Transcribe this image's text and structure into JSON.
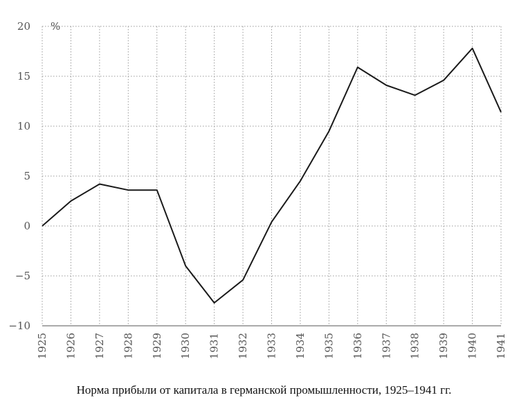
{
  "chart_data": {
    "type": "line",
    "caption": "Норма прибыли от капитала в германской промышленности, 1925–1941 гг.",
    "unit_label": "%",
    "x": [
      "1925",
      "1926",
      "1927",
      "1928",
      "1929",
      "1930",
      "1931",
      "1932",
      "1933",
      "1934",
      "1935",
      "1936",
      "1937",
      "1938",
      "1939",
      "1940",
      "1941"
    ],
    "y_ticks": [
      "20",
      "15",
      "10",
      "5",
      "0",
      "−5",
      "−10"
    ],
    "ylim": [
      -10,
      20
    ],
    "grid": true,
    "series": [
      {
        "values": [
          0,
          2.5,
          4.2,
          3.6,
          3.6,
          -4,
          -7.7,
          -5.4,
          0.4,
          4.5,
          9.5,
          15.9,
          14.1,
          13.1,
          14.6,
          17.8,
          11.4
        ]
      }
    ],
    "colors": {
      "line": "#1a1a1a",
      "grid": "#9a9a9a",
      "text": "#555555"
    }
  }
}
